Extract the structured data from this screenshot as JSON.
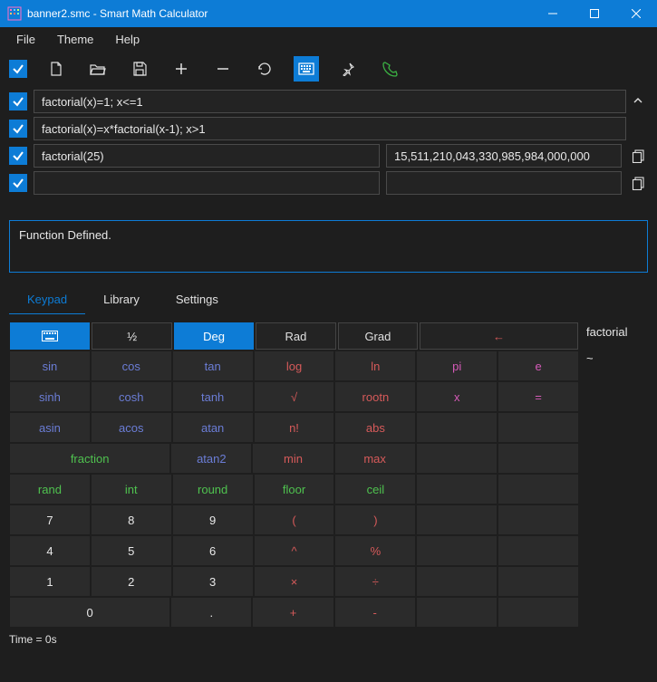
{
  "window": {
    "title": "banner2.smc - Smart Math Calculator"
  },
  "menu": {
    "file": "File",
    "theme": "Theme",
    "help": "Help"
  },
  "expressions": [
    {
      "checked": true,
      "input": "factorial(x)=1; x<=1",
      "result": null,
      "copy": false
    },
    {
      "checked": true,
      "input": "factorial(x)=x*factorial(x-1); x>1",
      "result": null,
      "copy": false
    },
    {
      "checked": true,
      "input": "factorial(25)",
      "result": "15,511,210,043,330,985,984,000,000",
      "copy": true
    },
    {
      "checked": true,
      "input": "",
      "result": "",
      "copy": true
    }
  ],
  "status": "Function Defined.",
  "tabs": {
    "keypad": "Keypad",
    "library": "Library",
    "settings": "Settings",
    "active": "keypad"
  },
  "keypad": {
    "toprow": {
      "kb": "⌨",
      "half": "½",
      "deg": "Deg",
      "rad": "Rad",
      "grad": "Grad",
      "back": "←"
    },
    "rows": [
      [
        {
          "t": "sin",
          "c": "#6b7dd6"
        },
        {
          "t": "cos",
          "c": "#6b7dd6"
        },
        {
          "t": "tan",
          "c": "#6b7dd6"
        },
        {
          "t": "log",
          "c": "#d65a5a"
        },
        {
          "t": "ln",
          "c": "#d65a5a"
        },
        {
          "t": "pi",
          "c": "#d65ab8"
        },
        {
          "t": "e",
          "c": "#d65ab8"
        }
      ],
      [
        {
          "t": "sinh",
          "c": "#6b7dd6"
        },
        {
          "t": "cosh",
          "c": "#6b7dd6"
        },
        {
          "t": "tanh",
          "c": "#6b7dd6"
        },
        {
          "t": "√",
          "c": "#d65a5a"
        },
        {
          "t": "rootn",
          "c": "#d65a5a"
        },
        {
          "t": "x",
          "c": "#d65ab8"
        },
        {
          "t": "=",
          "c": "#d65ab8"
        }
      ],
      [
        {
          "t": "asin",
          "c": "#6b7dd6"
        },
        {
          "t": "acos",
          "c": "#6b7dd6"
        },
        {
          "t": "atan",
          "c": "#6b7dd6"
        },
        {
          "t": "n!",
          "c": "#d65a5a"
        },
        {
          "t": "abs",
          "c": "#d65a5a"
        },
        {
          "t": "",
          "c": "#e8e8e8"
        },
        {
          "t": "",
          "c": "#e8e8e8"
        }
      ],
      [
        {
          "t": "fraction",
          "c": "#4fc24f",
          "span": 2
        },
        {
          "t": "atan2",
          "c": "#6b7dd6"
        },
        {
          "t": "min",
          "c": "#d65a5a"
        },
        {
          "t": "max",
          "c": "#d65a5a"
        },
        {
          "t": "",
          "c": "#e8e8e8"
        },
        {
          "t": "",
          "c": "#e8e8e8"
        }
      ],
      [
        {
          "t": "rand",
          "c": "#4fc24f"
        },
        {
          "t": "int",
          "c": "#4fc24f"
        },
        {
          "t": "round",
          "c": "#4fc24f"
        },
        {
          "t": "floor",
          "c": "#4fc24f"
        },
        {
          "t": "ceil",
          "c": "#4fc24f"
        },
        {
          "t": "",
          "c": "#e8e8e8"
        },
        {
          "t": "",
          "c": "#e8e8e8"
        }
      ],
      [
        {
          "t": "7",
          "c": "#e8e8e8"
        },
        {
          "t": "8",
          "c": "#e8e8e8"
        },
        {
          "t": "9",
          "c": "#e8e8e8"
        },
        {
          "t": "(",
          "c": "#d65a5a"
        },
        {
          "t": ")",
          "c": "#d65a5a"
        },
        {
          "t": "",
          "c": "#e8e8e8"
        },
        {
          "t": "",
          "c": "#e8e8e8"
        }
      ],
      [
        {
          "t": "4",
          "c": "#e8e8e8"
        },
        {
          "t": "5",
          "c": "#e8e8e8"
        },
        {
          "t": "6",
          "c": "#e8e8e8"
        },
        {
          "t": "^",
          "c": "#d65a5a"
        },
        {
          "t": "%",
          "c": "#d65a5a"
        },
        {
          "t": "",
          "c": "#e8e8e8"
        },
        {
          "t": "",
          "c": "#e8e8e8"
        }
      ],
      [
        {
          "t": "1",
          "c": "#e8e8e8"
        },
        {
          "t": "2",
          "c": "#e8e8e8"
        },
        {
          "t": "3",
          "c": "#e8e8e8"
        },
        {
          "t": "×",
          "c": "#d65a5a"
        },
        {
          "t": "÷",
          "c": "#d65a5a"
        },
        {
          "t": "",
          "c": "#e8e8e8"
        },
        {
          "t": "",
          "c": "#e8e8e8"
        }
      ],
      [
        {
          "t": "0",
          "c": "#e8e8e8",
          "span": 2
        },
        {
          "t": ".",
          "c": "#e8e8e8"
        },
        {
          "t": "+",
          "c": "#d65a5a"
        },
        {
          "t": "-",
          "c": "#d65a5a"
        },
        {
          "t": "",
          "c": "#e8e8e8"
        },
        {
          "t": "",
          "c": "#e8e8e8"
        }
      ]
    ]
  },
  "sidepanel": {
    "line1": "factorial",
    "line2": "~"
  },
  "footer": {
    "time": "Time = 0s"
  },
  "colors": {
    "accent": "#0d7cd6",
    "bg": "#1e1e1e",
    "key_bg": "#2b2b2b",
    "backspace": "#d65a5a",
    "green_phone": "#3bb143"
  }
}
